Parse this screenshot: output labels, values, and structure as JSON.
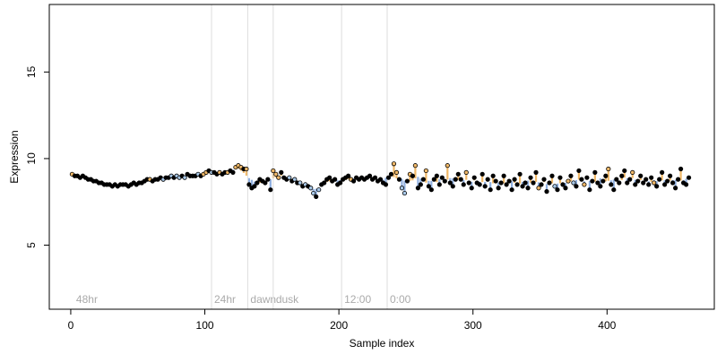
{
  "chart_data": {
    "type": "scatter",
    "title": "",
    "xlabel": "Sample index",
    "ylabel": "Expression",
    "xlim": [
      -16,
      480
    ],
    "ylim": [
      1.3,
      18.9
    ],
    "x_ticks": [
      0,
      100,
      200,
      300,
      400
    ],
    "y_ticks": [
      5,
      10,
      15
    ],
    "grid": false,
    "legend": "none",
    "colors": {
      "point_fill_dark": "#000000",
      "point_fill_light": "#a8c8e8",
      "point_fill_orange": "#f0b868",
      "fill_above": "#f0b868",
      "fill_below": "#90b0e0",
      "divider_line": "#dddddd",
      "divider_label": "#aaaaaa"
    },
    "dividers": [
      {
        "x": 105,
        "label": "24hr"
      },
      {
        "x": 132,
        "label": "dawn"
      },
      {
        "x": 151,
        "label": "dusk"
      },
      {
        "x": 202,
        "label": "12:00"
      },
      {
        "x": 236,
        "label": "0:00"
      }
    ],
    "extra_labels": [
      {
        "x": 2,
        "label": "48hr"
      }
    ],
    "series": [
      {
        "points_note": "Expression values by sample index; fill category: 0=dark,1=light-blue,2=orange",
        "x": [
          1,
          3,
          5,
          7,
          9,
          11,
          13,
          15,
          17,
          19,
          21,
          23,
          25,
          27,
          29,
          31,
          33,
          35,
          37,
          39,
          41,
          43,
          45,
          47,
          49,
          51,
          53,
          55,
          57,
          59,
          61,
          63,
          65,
          67,
          69,
          71,
          73,
          75,
          77,
          79,
          81,
          83,
          85,
          87,
          89,
          91,
          93,
          95,
          97,
          99,
          101,
          103,
          105,
          107,
          109,
          111,
          113,
          115,
          117,
          119,
          121,
          123,
          125,
          127,
          129,
          131,
          133,
          135,
          137,
          139,
          141,
          143,
          145,
          147,
          149,
          151,
          153,
          155,
          157,
          159,
          161,
          163,
          165,
          167,
          169,
          171,
          173,
          175,
          177,
          179,
          181,
          183,
          185,
          187,
          189,
          191,
          193,
          195,
          197,
          199,
          201,
          203,
          205,
          207,
          209,
          211,
          213,
          215,
          217,
          219,
          221,
          223,
          225,
          227,
          229,
          231,
          233,
          235,
          237,
          239,
          241,
          243,
          245,
          247,
          249,
          251,
          253,
          255,
          257,
          259,
          261,
          263,
          265,
          267,
          269,
          271,
          273,
          275,
          277,
          279,
          281,
          283,
          285,
          287,
          289,
          291,
          293,
          295,
          297,
          299,
          301,
          303,
          305,
          307,
          309,
          311,
          313,
          315,
          317,
          319,
          321,
          323,
          325,
          327,
          329,
          331,
          333,
          335,
          337,
          339,
          341,
          343,
          345,
          347,
          349,
          351,
          353,
          355,
          357,
          359,
          361,
          363,
          365,
          367,
          369,
          371,
          373,
          375,
          377,
          379,
          381,
          383,
          385,
          387,
          389,
          391,
          393,
          395,
          397,
          399,
          401,
          403,
          405,
          407,
          409,
          411,
          413,
          415,
          417,
          419,
          421,
          423,
          425,
          427,
          429,
          431,
          433,
          435,
          437,
          439,
          441,
          443,
          445,
          447,
          449,
          451,
          453,
          455,
          457,
          459,
          461
        ],
        "y": [
          9.1,
          9.0,
          9.0,
          8.9,
          9.0,
          8.9,
          8.8,
          8.8,
          8.7,
          8.7,
          8.6,
          8.6,
          8.5,
          8.5,
          8.5,
          8.4,
          8.5,
          8.4,
          8.5,
          8.5,
          8.5,
          8.4,
          8.5,
          8.6,
          8.5,
          8.6,
          8.6,
          8.7,
          8.8,
          8.8,
          8.7,
          8.8,
          8.8,
          8.9,
          8.8,
          8.9,
          8.9,
          9.0,
          8.9,
          9.0,
          8.9,
          9.0,
          8.9,
          9.1,
          9.0,
          9.0,
          9.0,
          9.1,
          9.0,
          9.1,
          9.2,
          9.3,
          9.2,
          9.2,
          9.1,
          9.2,
          9.1,
          9.2,
          9.2,
          9.3,
          9.2,
          9.5,
          9.6,
          9.5,
          9.4,
          9.4,
          8.5,
          8.3,
          8.4,
          8.6,
          8.8,
          8.7,
          8.6,
          8.8,
          8.2,
          9.3,
          9.1,
          8.9,
          9.2,
          8.9,
          8.8,
          8.9,
          8.7,
          8.8,
          8.6,
          8.6,
          8.4,
          8.5,
          8.4,
          8.3,
          8.0,
          7.8,
          8.2,
          8.5,
          8.6,
          8.8,
          8.9,
          8.7,
          8.8,
          8.5,
          8.6,
          8.8,
          8.9,
          9.0,
          8.8,
          8.7,
          8.9,
          8.8,
          8.9,
          8.8,
          8.9,
          9.0,
          8.8,
          8.9,
          8.7,
          8.8,
          8.6,
          8.5,
          8.9,
          9.1,
          9.7,
          9.2,
          8.8,
          8.3,
          8.0,
          8.7,
          9.1,
          9.0,
          9.6,
          8.3,
          8.5,
          8.8,
          9.3,
          8.4,
          8.2,
          8.8,
          9.0,
          8.5,
          8.9,
          8.7,
          9.6,
          8.6,
          8.4,
          8.8,
          9.1,
          8.8,
          8.5,
          9.2,
          8.6,
          8.3,
          8.9,
          8.6,
          8.5,
          9.1,
          8.4,
          8.8,
          8.2,
          9.0,
          8.7,
          8.3,
          8.6,
          9.0,
          8.5,
          8.7,
          8.2,
          8.8,
          8.5,
          9.1,
          8.4,
          8.6,
          8.3,
          8.9,
          8.6,
          9.2,
          8.3,
          8.5,
          8.8,
          8.1,
          8.6,
          9.0,
          8.4,
          8.2,
          8.9,
          8.5,
          8.3,
          8.7,
          9.0,
          8.6,
          8.4,
          9.3,
          8.8,
          8.5,
          8.9,
          8.2,
          8.7,
          9.2,
          8.6,
          8.4,
          8.7,
          9.0,
          9.4,
          8.5,
          8.2,
          8.8,
          8.6,
          9.0,
          9.3,
          8.6,
          8.8,
          9.2,
          8.5,
          8.7,
          9.0,
          8.6,
          8.8,
          8.5,
          8.9,
          8.6,
          8.4,
          8.8,
          9.2,
          8.5,
          8.7,
          9.0,
          8.6,
          8.3,
          8.8,
          9.4,
          8.6,
          8.5,
          8.9
        ],
        "fill": [
          2,
          0,
          0,
          0,
          0,
          0,
          0,
          0,
          0,
          0,
          0,
          0,
          0,
          0,
          0,
          0,
          0,
          0,
          0,
          0,
          0,
          0,
          0,
          0,
          0,
          0,
          0,
          0,
          0,
          2,
          0,
          0,
          0,
          0,
          1,
          0,
          0,
          1,
          0,
          1,
          1,
          0,
          1,
          0,
          0,
          0,
          0,
          1,
          0,
          2,
          2,
          0,
          1,
          0,
          0,
          2,
          0,
          0,
          2,
          0,
          0,
          2,
          2,
          2,
          0,
          2,
          0,
          0,
          0,
          0,
          0,
          0,
          0,
          0,
          0,
          2,
          2,
          2,
          0,
          0,
          0,
          1,
          0,
          1,
          0,
          1,
          0,
          1,
          0,
          1,
          1,
          0,
          1,
          0,
          0,
          0,
          0,
          0,
          0,
          0,
          0,
          0,
          0,
          0,
          2,
          0,
          0,
          0,
          0,
          0,
          0,
          0,
          0,
          0,
          0,
          0,
          0,
          0,
          0,
          0,
          2,
          2,
          0,
          1,
          1,
          0,
          2,
          0,
          2,
          0,
          0,
          0,
          2,
          0,
          0,
          0,
          0,
          0,
          0,
          0,
          2,
          0,
          0,
          0,
          0,
          0,
          0,
          2,
          0,
          0,
          0,
          0,
          0,
          0,
          0,
          0,
          0,
          0,
          0,
          0,
          0,
          0,
          0,
          0,
          0,
          0,
          0,
          0,
          0,
          0,
          0,
          0,
          0,
          0,
          2,
          0,
          0,
          0,
          0,
          0,
          1,
          0,
          0,
          0,
          0,
          2,
          0,
          1,
          0,
          0,
          0,
          2,
          0,
          0,
          0,
          0,
          0,
          0,
          0,
          0,
          2,
          0,
          0,
          0,
          0,
          0,
          0,
          0,
          0,
          2,
          0,
          0,
          0,
          0,
          0,
          0,
          0,
          2,
          0,
          0,
          0,
          0,
          0,
          0,
          0,
          0,
          0,
          0,
          0,
          0,
          0,
          0,
          0,
          0,
          0,
          0,
          0,
          0,
          2
        ]
      }
    ]
  }
}
